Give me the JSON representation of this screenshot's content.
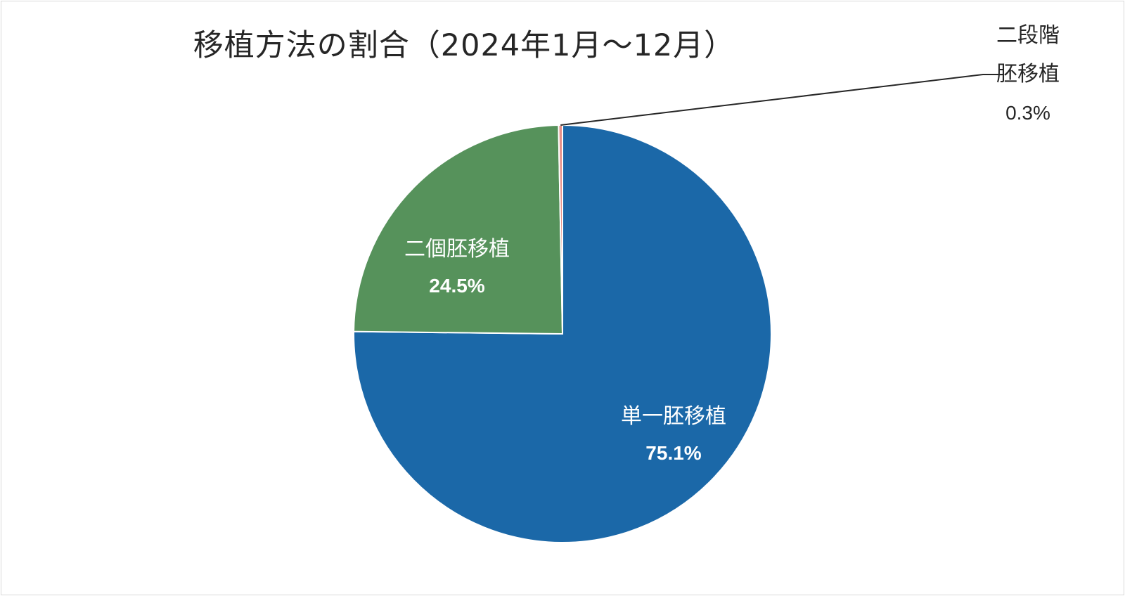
{
  "chart_data": {
    "type": "pie",
    "title": "移植方法の割合（2024年1月～12月）",
    "slices": [
      {
        "label_lines": [
          "単一胚移植"
        ],
        "value": 75.1,
        "value_label": "75.1%",
        "color": "#1B68A8"
      },
      {
        "label_lines": [
          "二個胚移植"
        ],
        "value": 24.5,
        "value_label": "24.5%",
        "color": "#56925B"
      },
      {
        "label_lines": [
          "二段階",
          "胚移植"
        ],
        "value": 0.3,
        "value_label": "0.3%",
        "color": "#E8918A"
      }
    ],
    "start_angle": "12 o'clock",
    "direction": "clockwise",
    "legend": "none"
  }
}
